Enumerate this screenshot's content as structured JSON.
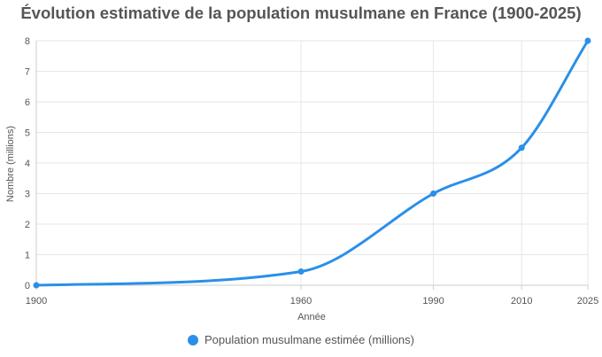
{
  "chart_data": {
    "type": "line",
    "title": "Évolution estimative de la population musulmane en France (1900-2025)",
    "xlabel": "Année",
    "ylabel": "Nombre (millions)",
    "x": [
      1900,
      1960,
      1990,
      2010,
      2025
    ],
    "xlim": [
      1900,
      2025
    ],
    "ylim": [
      0,
      8
    ],
    "yticks": [
      0,
      1,
      2,
      3,
      4,
      5,
      6,
      7,
      8
    ],
    "grid": true,
    "legend_position": "bottom",
    "series": [
      {
        "name": "Population musulmane estimée (millions)",
        "values": [
          0,
          0.45,
          3,
          4.5,
          8
        ],
        "color": "#2b8fe8"
      }
    ]
  }
}
